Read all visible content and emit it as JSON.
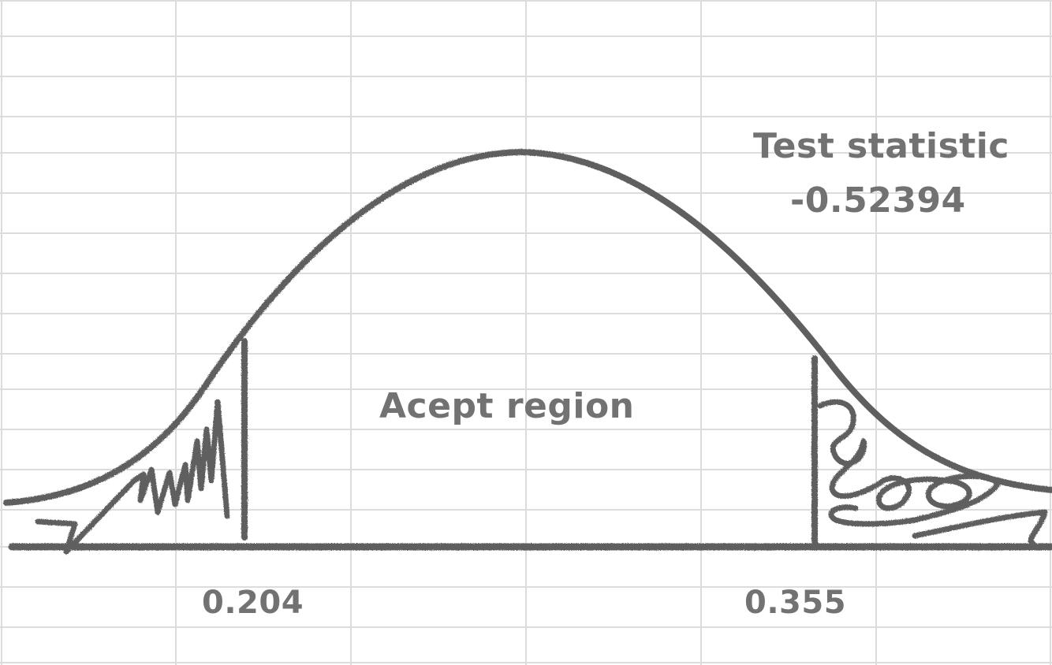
{
  "annotations": {
    "test_statistic_title": "Test statistic",
    "test_statistic_value": "-0.52394",
    "accept_region": "Acept region",
    "left_critical": "0.204",
    "right_critical": "0.355"
  },
  "colors": {
    "ink": "#5e5e5e",
    "text": "#727272",
    "grid": "#dcdcdc",
    "background": "#ffffff"
  }
}
